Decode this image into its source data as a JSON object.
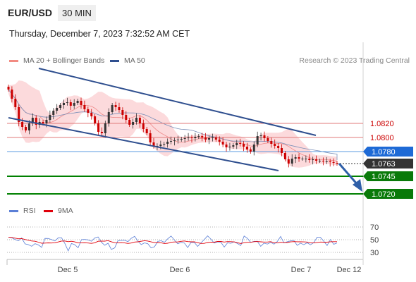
{
  "header": {
    "symbol": "EUR/USD",
    "timeframe": "30 MIN",
    "datetime": "Thursday, December 7, 2023 7:32:52 AM CET"
  },
  "legend": {
    "bollinger": {
      "label": "MA 20 + Bollinger Bands",
      "color": "#f28b82"
    },
    "ma50": {
      "label": "MA 50",
      "color": "#2f4f8f"
    },
    "rsi": {
      "label": "RSI",
      "color": "#5b7fd6"
    },
    "rsi_ma": {
      "label": "9MA",
      "color": "#e0000a"
    }
  },
  "credit": "Research © 2023 Trading Central",
  "colors": {
    "up": "#333333",
    "down": "#cc0000",
    "channel": "#2f4f8f",
    "support": "#008000",
    "resistance": "#e07a7a",
    "pivot": "#5b9be0",
    "band_fill": "#fbd4d6"
  },
  "chart_data": [
    {
      "type": "candlestick",
      "x_ticks": [
        "Dec 5",
        "Dec 6",
        "Dec 7",
        "Dec 12"
      ],
      "levels": [
        {
          "value": "1.0820",
          "kind": "resistance"
        },
        {
          "value": "1.0800",
          "kind": "resistance"
        },
        {
          "value": "1.0780",
          "kind": "pivot"
        },
        {
          "value": "1.0763",
          "kind": "last"
        },
        {
          "value": "1.0745",
          "kind": "support"
        },
        {
          "value": "1.0720",
          "kind": "support"
        }
      ],
      "price_range_estimate": [
        1.07,
        1.09
      ],
      "close_series": [
        1.0868,
        1.0855,
        1.0843,
        1.0822,
        1.0815,
        1.081,
        1.082,
        1.0828,
        1.0818,
        1.0822,
        1.082,
        1.0825,
        1.0832,
        1.0838,
        1.0842,
        1.0846,
        1.0849,
        1.085,
        1.0845,
        1.0849,
        1.0852,
        1.0846,
        1.084,
        1.0835,
        1.083,
        1.082,
        1.0808,
        1.0806,
        1.082,
        1.0836,
        1.0846,
        1.0843,
        1.0839,
        1.0832,
        1.0825,
        1.0818,
        1.0822,
        1.0828,
        1.082,
        1.0812,
        1.0806,
        1.0793,
        1.0788,
        1.0788,
        1.079,
        1.0791,
        1.0794,
        1.0795,
        1.0796,
        1.0797,
        1.0798,
        1.0799,
        1.08,
        1.0799,
        1.0801,
        1.0802,
        1.08,
        1.0797,
        1.0799,
        1.08,
        1.0797,
        1.0794,
        1.079,
        1.0786,
        1.0787,
        1.0789,
        1.0792,
        1.0791,
        1.0787,
        1.0783,
        1.078,
        1.079,
        1.0802,
        1.0803,
        1.0799,
        1.0795,
        1.0791,
        1.0788,
        1.0785,
        1.0778,
        1.0769,
        1.0763,
        1.077,
        1.0772,
        1.077,
        1.077,
        1.077,
        1.0768,
        1.0769,
        1.0767,
        1.0767,
        1.0766,
        1.0766,
        1.0765,
        1.0764,
        1.0763
      ]
    },
    {
      "type": "line",
      "name": "RSI",
      "y_ticks": [
        70,
        50,
        30
      ],
      "ylim": [
        20,
        80
      ]
    }
  ]
}
